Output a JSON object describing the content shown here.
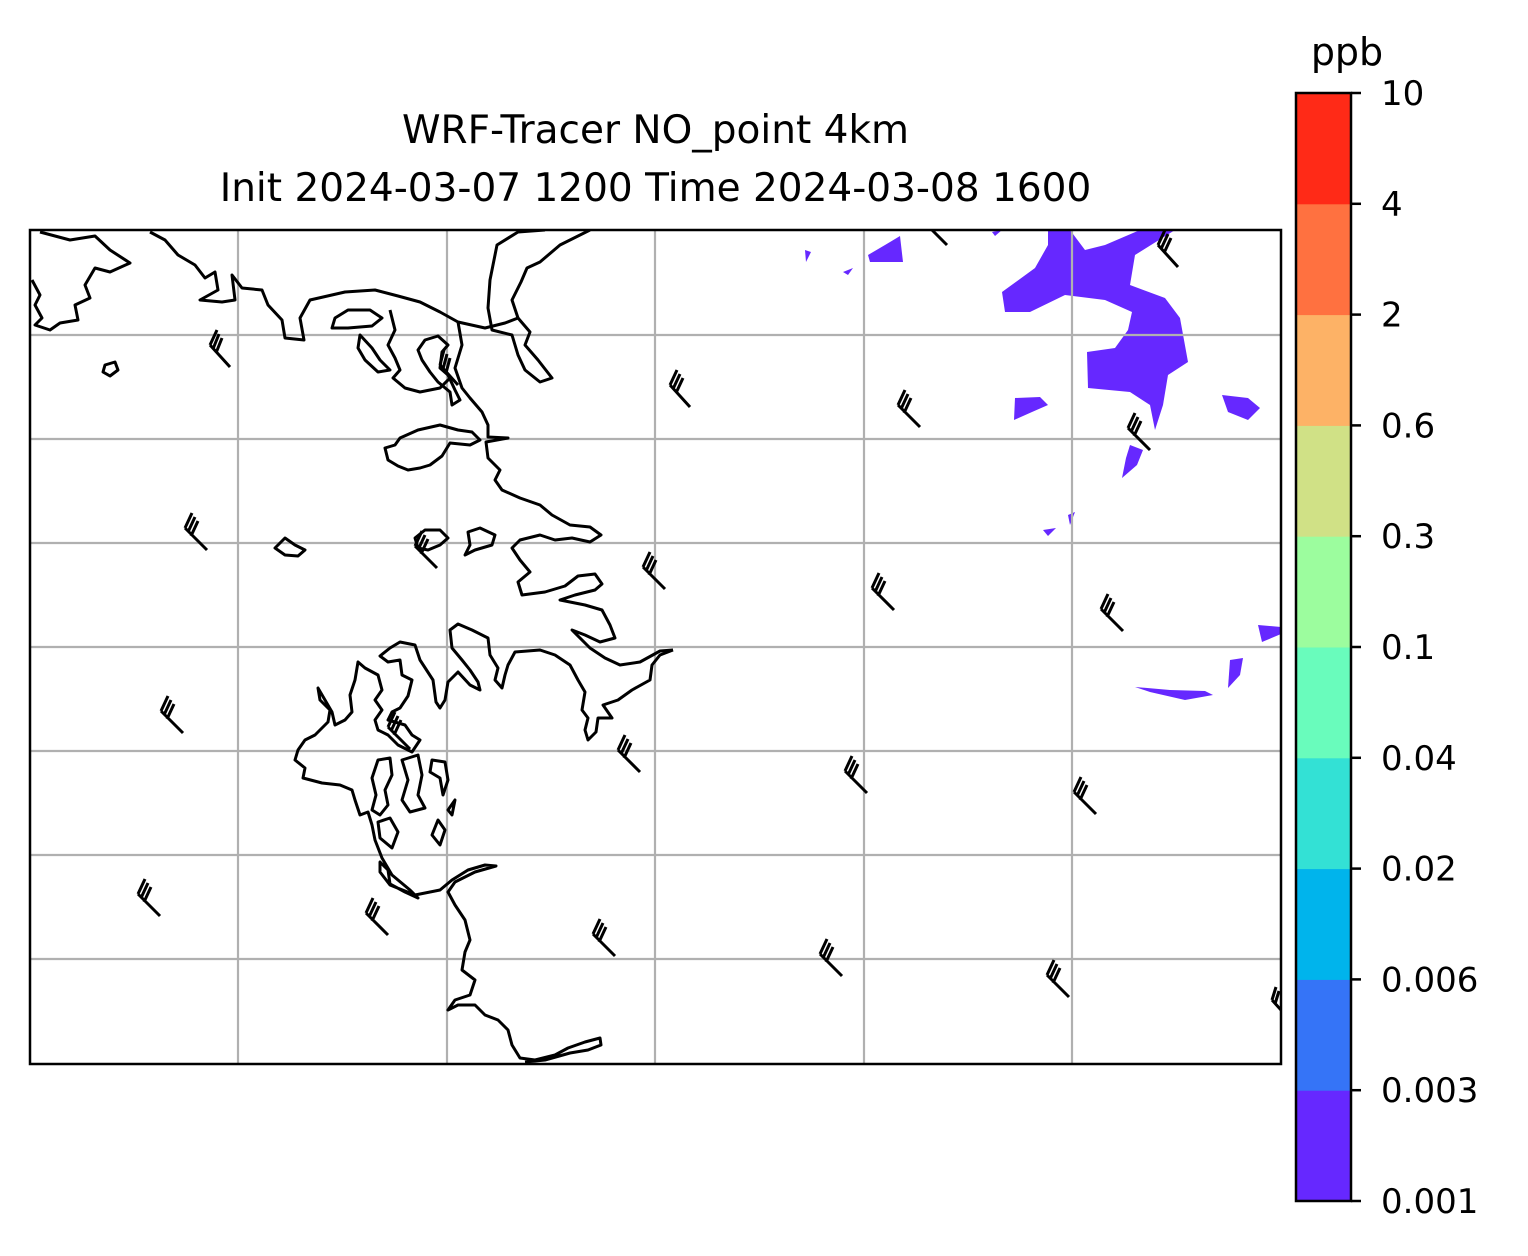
{
  "title": {
    "line1": "WRF-Tracer NO_point 4km",
    "line2": "Init 2024-03-07 1200 Time 2024-03-08 1600"
  },
  "colorbar": {
    "unit": "ppb",
    "levels": [
      "0.001",
      "0.003",
      "0.006",
      "0.02",
      "0.04",
      "0.1",
      "0.3",
      "0.6",
      "2",
      "4",
      "10"
    ],
    "colors": [
      "#6628ff",
      "#3574f7",
      "#00b4ec",
      "#33e1d5",
      "#69fcbc",
      "#9cfd9e",
      "#d0e186",
      "#fdb266",
      "#ff7140",
      "#ff2a17"
    ]
  },
  "map": {
    "gridlines": true,
    "coastline_color": "#000000",
    "gridline_color": "#b0b0b0",
    "lowest_level_fill_color": "#6628ff",
    "wind_barbs": "uniform northwesterly barbs across domain"
  }
}
